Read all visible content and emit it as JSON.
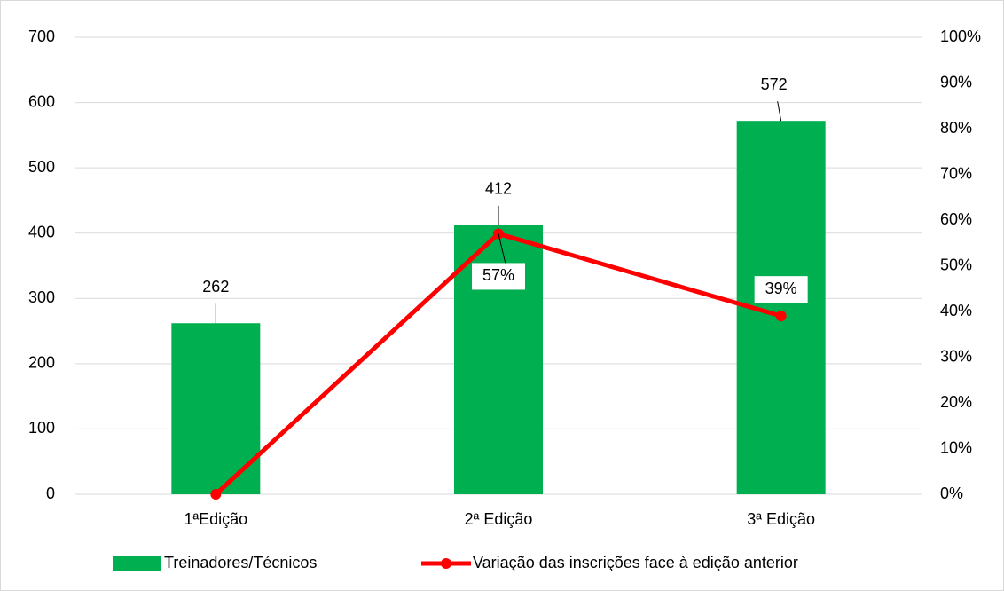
{
  "chart_data": {
    "type": "combo",
    "categories": [
      "1ªEdição",
      "2ª Edição",
      "3ª Edição"
    ],
    "series": [
      {
        "name": "Treinadores/Técnicos",
        "type": "bar",
        "color": "#00b050",
        "values": [
          262,
          412,
          572
        ]
      },
      {
        "name": "Variação das inscrições face à edição anterior",
        "type": "line",
        "axis": "y2",
        "color": "#ff0000",
        "values": [
          0,
          57,
          39
        ],
        "value_labels": [
          null,
          "57%",
          "39%"
        ]
      }
    ],
    "ylim": [
      0,
      700
    ],
    "yticks": [
      0,
      100,
      200,
      300,
      400,
      500,
      600,
      700
    ],
    "y2lim": [
      0,
      100
    ],
    "y2ticks": [
      {
        "value": 0,
        "label": "0%"
      },
      {
        "value": 10,
        "label": "10%"
      },
      {
        "value": 20,
        "label": "20%"
      },
      {
        "value": 30,
        "label": "30%"
      },
      {
        "value": 40,
        "label": "40%"
      },
      {
        "value": 50,
        "label": "50%"
      },
      {
        "value": 60,
        "label": "60%"
      },
      {
        "value": 70,
        "label": "70%"
      },
      {
        "value": 80,
        "label": "80%"
      },
      {
        "value": 90,
        "label": "90%"
      },
      {
        "value": 100,
        "label": "100%"
      }
    ],
    "grid": true
  }
}
